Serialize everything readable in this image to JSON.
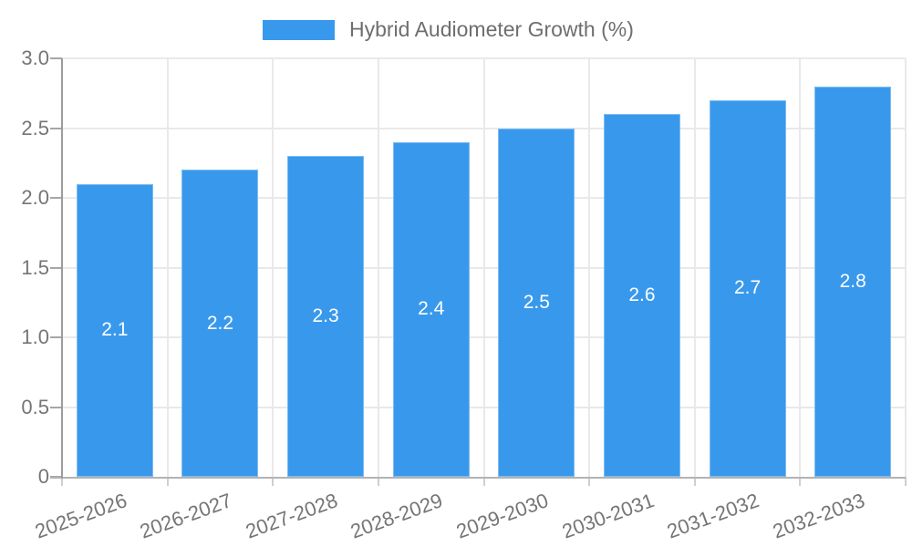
{
  "colors": {
    "bar": "#3899ec",
    "axis_text": "#757575",
    "legend_text": "#6e6e6e",
    "grid_line": "#e9e9e9",
    "y_axis_line": "#9c9c9c",
    "x_axis_line": "#b3b3b3",
    "tick_left": "#a6a6a6",
    "tick_bottom": "#cfcfcf",
    "bar_value_text": "#ffffff",
    "background": "#ffffff"
  },
  "chart_data": {
    "type": "bar",
    "title": "",
    "series_label": "Hybrid Audiometer Growth (%)",
    "legend_position": "top-center",
    "categories": [
      "2025-2026",
      "2026-2027",
      "2027-2028",
      "2028-2029",
      "2029-2030",
      "2030-2031",
      "2031-2032",
      "2032-2033"
    ],
    "values": [
      2.1,
      2.2,
      2.3,
      2.4,
      2.5,
      2.6,
      2.7,
      2.8
    ],
    "bar_labels": [
      "2.1",
      "2.2",
      "2.3",
      "2.4",
      "2.5",
      "2.6",
      "2.7",
      "2.8"
    ],
    "xlabel": "",
    "ylabel": "",
    "ylim": [
      0,
      3
    ],
    "yticks": [
      0,
      0.5,
      1,
      1.5,
      2,
      2.5,
      3
    ],
    "ytick_labels": [
      "0",
      "0.5",
      "1.0",
      "1.5",
      "2.0",
      "2.5",
      "3.0"
    ],
    "grid": true,
    "xtick_rotation_deg": -20
  }
}
